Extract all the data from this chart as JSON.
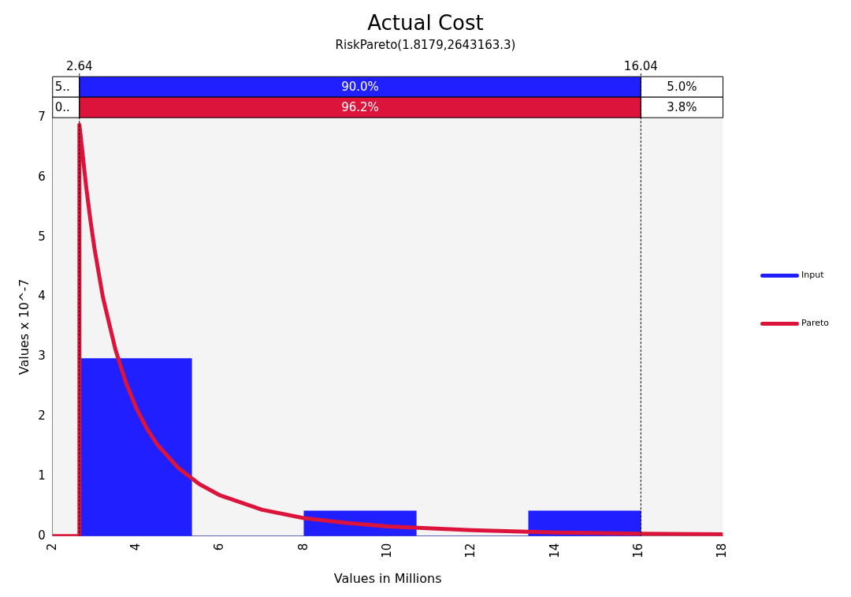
{
  "chart_data": {
    "type": "histogram",
    "title": "Actual Cost",
    "subtitle": "RiskPareto(1.8179,2643163.3)",
    "xlabel": "Values in Millions",
    "ylabel": "Values x 10^-7",
    "bins": [
      2.64,
      5.32,
      8.0,
      10.68,
      13.36,
      16.04
    ],
    "series": [
      {
        "name": "Input",
        "color": "#1f1fff",
        "values": [
          2.97,
          0,
          0.42,
          0,
          0.42
        ]
      },
      {
        "name": "Pareto",
        "type": "line",
        "color": "#dc143c",
        "x": [
          2,
          2.64,
          2.64,
          2.7,
          2.8,
          2.9,
          3,
          3.2,
          3.5,
          3.75,
          4,
          4.25,
          4.5,
          5,
          5.5,
          6,
          7,
          8,
          9,
          10,
          12,
          14,
          16,
          18
        ],
        "values": [
          0,
          0,
          6.88,
          6.5,
          5.85,
          5.3,
          4.81,
          4.0,
          3.12,
          2.57,
          2.14,
          1.8,
          1.53,
          1.14,
          0.87,
          0.68,
          0.44,
          0.3,
          0.22,
          0.16,
          0.1,
          0.06,
          0.04,
          0.03
        ]
      }
    ],
    "xlim": [
      2,
      18
    ],
    "xticks": [
      2,
      4,
      6,
      8,
      10,
      12,
      14,
      16,
      18
    ],
    "ylim": [
      0,
      7
    ],
    "yticks": [
      0,
      1,
      2,
      3,
      4,
      5,
      6,
      7
    ],
    "ref_lines": [
      {
        "axis": "x",
        "value": 2.64,
        "label": "2.64",
        "line_style": "dashed"
      },
      {
        "axis": "x",
        "value": 16.04,
        "label": "16.04",
        "line_style": "dashed"
      }
    ],
    "annotations": [
      "5..",
      "90.0%",
      "5.0%",
      "0..",
      "96.2%",
      "3.8%"
    ],
    "legend": "right",
    "grid": false,
    "marker": "none"
  }
}
